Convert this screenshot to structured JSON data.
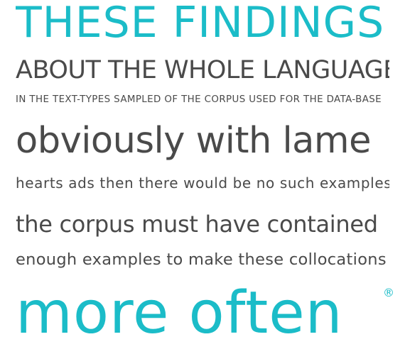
{
  "colors": {
    "accent": "#1bbcc8",
    "text": "#4a4a4a"
  },
  "specimen": {
    "line1": "THESE FINDINGS",
    "line2": "ABOUT THE WHOLE LANGUAGE",
    "line3": "IN THE TEXT-TYPES SAMPLED OF THE CORPUS USED FOR THE DATA-BASE",
    "line4": "obviously with lame",
    "line5": "hearts ads then there would be no such examples",
    "line6": "the corpus must have contained",
    "line7": "enough examples to make these collocations",
    "line8": "more often",
    "registered_mark": "®"
  }
}
